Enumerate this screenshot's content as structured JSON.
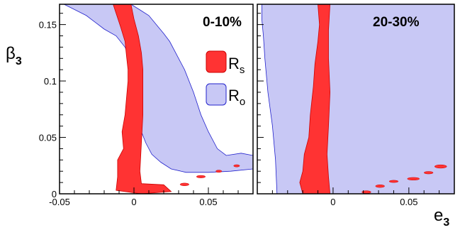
{
  "chart_data": [
    {
      "type": "area",
      "panel_label": "0-10%",
      "xlim": [
        -0.05,
        0.08
      ],
      "ylim": [
        0,
        0.168
      ],
      "x_ticks": [
        -0.05,
        0,
        0.05
      ],
      "x_tick_labels": [
        "-0.05",
        "0",
        "0.05"
      ],
      "y_ticks": [
        0,
        0.05,
        0.1,
        0.15
      ],
      "y_tick_labels": [
        "0",
        "0.05",
        "0.1",
        "0.15"
      ],
      "legend": [
        {
          "label": "R",
          "subscript": "s",
          "color": "#ff3333"
        },
        {
          "label": "R",
          "subscript": "o",
          "color": "#c8c8f5"
        }
      ],
      "series": [
        {
          "name": "Ro",
          "color": "#c8c8f5",
          "edge_color": "#2222cc",
          "polygon": [
            [
              -0.047,
              0.168
            ],
            [
              -0.038,
              0.162
            ],
            [
              -0.032,
              0.158
            ],
            [
              -0.026,
              0.152
            ],
            [
              -0.02,
              0.146
            ],
            [
              -0.012,
              0.14
            ],
            [
              -0.006,
              0.13
            ],
            [
              -0.003,
              0.12
            ],
            [
              -0.001,
              0.11
            ],
            [
              0.001,
              0.1
            ],
            [
              0.002,
              0.09
            ],
            [
              0.003,
              0.08
            ],
            [
              0.004,
              0.068
            ],
            [
              0.005,
              0.055
            ],
            [
              0.008,
              0.045
            ],
            [
              0.012,
              0.035
            ],
            [
              0.018,
              0.028
            ],
            [
              0.025,
              0.022
            ],
            [
              0.035,
              0.019
            ],
            [
              0.05,
              0.019
            ],
            [
              0.065,
              0.02
            ],
            [
              0.08,
              0.022
            ],
            [
              0.08,
              0.034
            ],
            [
              0.072,
              0.036
            ],
            [
              0.062,
              0.034
            ],
            [
              0.056,
              0.04
            ],
            [
              0.05,
              0.055
            ],
            [
              0.045,
              0.07
            ],
            [
              0.04,
              0.09
            ],
            [
              0.034,
              0.11
            ],
            [
              0.028,
              0.125
            ],
            [
              0.024,
              0.135
            ],
            [
              0.02,
              0.142
            ],
            [
              0.015,
              0.15
            ],
            [
              0.01,
              0.158
            ],
            [
              0.004,
              0.163
            ],
            [
              -0.002,
              0.168
            ]
          ]
        },
        {
          "name": "Rs",
          "color": "#ff3333",
          "edge_color": "#cc0000",
          "polygon": [
            [
              -0.014,
              0.168
            ],
            [
              -0.012,
              0.16
            ],
            [
              -0.009,
              0.148
            ],
            [
              -0.006,
              0.135
            ],
            [
              -0.005,
              0.122
            ],
            [
              -0.004,
              0.11
            ],
            [
              -0.004,
              0.1
            ],
            [
              -0.005,
              0.085
            ],
            [
              -0.006,
              0.07
            ],
            [
              -0.008,
              0.055
            ],
            [
              -0.007,
              0.04
            ],
            [
              -0.011,
              0.03
            ],
            [
              -0.011,
              0.015
            ],
            [
              -0.012,
              0.003
            ],
            [
              0.005,
              0.0
            ],
            [
              0.025,
              0.002
            ],
            [
              0.02,
              0.008
            ],
            [
              0.005,
              0.009
            ],
            [
              0.004,
              0.02
            ],
            [
              0.005,
              0.045
            ],
            [
              0.006,
              0.07
            ],
            [
              0.006,
              0.09
            ],
            [
              0.006,
              0.11
            ],
            [
              0.005,
              0.125
            ],
            [
              0.003,
              0.14
            ],
            [
              0.0,
              0.155
            ],
            [
              -0.002,
              0.168
            ]
          ],
          "islands": [
            {
              "x": 0.034,
              "y": 0.0083,
              "rx": 0.003,
              "ry": 0.0012
            },
            {
              "x": 0.045,
              "y": 0.0152,
              "rx": 0.003,
              "ry": 0.0011
            },
            {
              "x": 0.057,
              "y": 0.02,
              "rx": 0.002,
              "ry": 0.001
            },
            {
              "x": 0.069,
              "y": 0.0248,
              "rx": 0.002,
              "ry": 0.001
            }
          ]
        }
      ]
    },
    {
      "type": "area",
      "panel_label": "20-30%",
      "xlim": [
        -0.05,
        0.08
      ],
      "ylim": [
        0,
        0.168
      ],
      "x_ticks": [
        0,
        0.05
      ],
      "x_tick_labels": [
        "0",
        "0.05"
      ],
      "y_ticks": [
        0,
        0.05,
        0.1,
        0.15
      ],
      "xlabel": "e",
      "xlabel_subscript": "3",
      "series": [
        {
          "name": "Ro",
          "color": "#c8c8f5",
          "edge_color": "#2222cc",
          "polygon": [
            [
              -0.047,
              0.168
            ],
            [
              0.08,
              0.168
            ],
            [
              0.08,
              0.0
            ],
            [
              -0.037,
              0.0
            ],
            [
              -0.038,
              0.03
            ],
            [
              -0.04,
              0.06
            ],
            [
              -0.043,
              0.09
            ],
            [
              -0.045,
              0.12
            ],
            [
              -0.046,
              0.14
            ],
            [
              -0.047,
              0.155
            ]
          ]
        },
        {
          "name": "Rs",
          "color": "#ff3333",
          "edge_color": "#cc0000",
          "polygon": [
            [
              -0.01,
              0.168
            ],
            [
              -0.009,
              0.15
            ],
            [
              -0.01,
              0.135
            ],
            [
              -0.012,
              0.115
            ],
            [
              -0.013,
              0.095
            ],
            [
              -0.015,
              0.07
            ],
            [
              -0.016,
              0.05
            ],
            [
              -0.019,
              0.035
            ],
            [
              -0.02,
              0.02
            ],
            [
              -0.022,
              0.01
            ],
            [
              -0.02,
              0.0
            ],
            [
              -0.002,
              0.0
            ],
            [
              -0.003,
              0.015
            ],
            [
              -0.004,
              0.035
            ],
            [
              -0.003,
              0.06
            ],
            [
              -0.002,
              0.09
            ],
            [
              -0.003,
              0.12
            ],
            [
              -0.003,
              0.145
            ],
            [
              -0.002,
              0.168
            ]
          ],
          "islands": [
            {
              "x": 0.022,
              "y": 0.0015,
              "rx": 0.003,
              "ry": 0.0012
            },
            {
              "x": 0.031,
              "y": 0.0068,
              "rx": 0.003,
              "ry": 0.0012
            },
            {
              "x": 0.04,
              "y": 0.011,
              "rx": 0.003,
              "ry": 0.001
            },
            {
              "x": 0.053,
              "y": 0.0133,
              "rx": 0.004,
              "ry": 0.0012
            },
            {
              "x": 0.063,
              "y": 0.0187,
              "rx": 0.003,
              "ry": 0.0011
            },
            {
              "x": 0.071,
              "y": 0.0242,
              "rx": 0.004,
              "ry": 0.0015
            }
          ]
        }
      ]
    }
  ],
  "axis_titles": {
    "y": "β",
    "y_subscript": "3"
  }
}
